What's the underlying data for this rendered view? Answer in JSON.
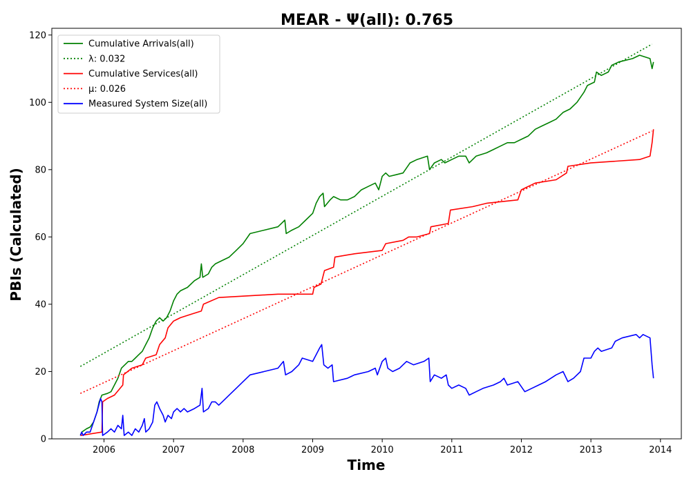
{
  "chart_data": {
    "type": "line",
    "title": "MEAR -  Ψ(all): 0.765",
    "xlabel": "Time",
    "ylabel": "PBIs (Calculated)",
    "xlim": [
      2005.25,
      2014.3
    ],
    "ylim": [
      0,
      122
    ],
    "x_ticks": [
      2006,
      2007,
      2008,
      2009,
      2010,
      2011,
      2012,
      2013,
      2014
    ],
    "y_ticks": [
      0,
      20,
      40,
      60,
      80,
      100,
      120
    ],
    "grid": false,
    "legend_position": "top-left",
    "series": [
      {
        "name": "Cumulative Arrivals(all)",
        "color": "#008000",
        "style": "solid",
        "points": [
          [
            2005.66,
            1
          ],
          [
            2005.68,
            2
          ],
          [
            2005.75,
            3
          ],
          [
            2005.8,
            3.5
          ],
          [
            2005.85,
            5
          ],
          [
            2005.9,
            8
          ],
          [
            2005.93,
            11
          ],
          [
            2005.95,
            12
          ],
          [
            2005.97,
            13
          ],
          [
            2006.05,
            13.5
          ],
          [
            2006.1,
            14
          ],
          [
            2006.15,
            16
          ],
          [
            2006.2,
            18
          ],
          [
            2006.25,
            21
          ],
          [
            2006.3,
            22
          ],
          [
            2006.35,
            23
          ],
          [
            2006.4,
            23
          ],
          [
            2006.45,
            24
          ],
          [
            2006.5,
            25
          ],
          [
            2006.55,
            26
          ],
          [
            2006.6,
            28
          ],
          [
            2006.65,
            30
          ],
          [
            2006.7,
            33
          ],
          [
            2006.75,
            35
          ],
          [
            2006.8,
            36
          ],
          [
            2006.85,
            35
          ],
          [
            2006.9,
            36
          ],
          [
            2006.95,
            38
          ],
          [
            2007,
            41
          ],
          [
            2007.05,
            43
          ],
          [
            2007.1,
            44
          ],
          [
            2007.2,
            45
          ],
          [
            2007.3,
            47
          ],
          [
            2007.38,
            48
          ],
          [
            2007.4,
            52
          ],
          [
            2007.42,
            48
          ],
          [
            2007.5,
            49
          ],
          [
            2007.55,
            51
          ],
          [
            2007.6,
            52
          ],
          [
            2007.7,
            53
          ],
          [
            2007.8,
            54
          ],
          [
            2007.9,
            56
          ],
          [
            2008,
            58
          ],
          [
            2008.1,
            61
          ],
          [
            2008.3,
            62
          ],
          [
            2008.5,
            63
          ],
          [
            2008.55,
            64
          ],
          [
            2008.6,
            65
          ],
          [
            2008.62,
            61
          ],
          [
            2008.7,
            62
          ],
          [
            2008.8,
            63
          ],
          [
            2008.9,
            65
          ],
          [
            2009,
            67
          ],
          [
            2009.05,
            70
          ],
          [
            2009.1,
            72
          ],
          [
            2009.15,
            73
          ],
          [
            2009.17,
            69
          ],
          [
            2009.25,
            71
          ],
          [
            2009.3,
            72
          ],
          [
            2009.4,
            71
          ],
          [
            2009.5,
            71
          ],
          [
            2009.6,
            72
          ],
          [
            2009.7,
            74
          ],
          [
            2009.8,
            75
          ],
          [
            2009.9,
            76
          ],
          [
            2009.95,
            74
          ],
          [
            2010,
            78
          ],
          [
            2010.05,
            79
          ],
          [
            2010.1,
            78
          ],
          [
            2010.2,
            78.5
          ],
          [
            2010.3,
            79
          ],
          [
            2010.4,
            82
          ],
          [
            2010.5,
            83
          ],
          [
            2010.65,
            84
          ],
          [
            2010.68,
            80
          ],
          [
            2010.75,
            82
          ],
          [
            2010.85,
            83
          ],
          [
            2010.9,
            82
          ],
          [
            2011,
            83
          ],
          [
            2011.1,
            84
          ],
          [
            2011.2,
            84
          ],
          [
            2011.25,
            82
          ],
          [
            2011.35,
            84
          ],
          [
            2011.5,
            85
          ],
          [
            2011.6,
            86
          ],
          [
            2011.7,
            87
          ],
          [
            2011.8,
            88
          ],
          [
            2011.9,
            88
          ],
          [
            2012,
            89
          ],
          [
            2012.1,
            90
          ],
          [
            2012.2,
            92
          ],
          [
            2012.3,
            93
          ],
          [
            2012.4,
            94
          ],
          [
            2012.5,
            95
          ],
          [
            2012.55,
            96
          ],
          [
            2012.6,
            97
          ],
          [
            2012.7,
            98
          ],
          [
            2012.8,
            100
          ],
          [
            2012.9,
            103
          ],
          [
            2012.95,
            105
          ],
          [
            2013.05,
            106
          ],
          [
            2013.08,
            109
          ],
          [
            2013.15,
            108
          ],
          [
            2013.25,
            109
          ],
          [
            2013.3,
            111
          ],
          [
            2013.4,
            112
          ],
          [
            2013.6,
            113
          ],
          [
            2013.7,
            114
          ],
          [
            2013.85,
            113
          ],
          [
            2013.88,
            110
          ],
          [
            2013.9,
            112
          ]
        ]
      },
      {
        "name": "λ: 0.032",
        "color": "#008000",
        "style": "dotted",
        "points": [
          [
            2005.66,
            21.5
          ],
          [
            2013.88,
            117.3
          ]
        ]
      },
      {
        "name": "Cumulative Services(all)",
        "color": "#ff0000",
        "style": "solid",
        "points": [
          [
            2005.66,
            1
          ],
          [
            2005.97,
            2
          ],
          [
            2005.98,
            11
          ],
          [
            2006.05,
            12
          ],
          [
            2006.15,
            13
          ],
          [
            2006.27,
            16
          ],
          [
            2006.28,
            19
          ],
          [
            2006.4,
            21
          ],
          [
            2006.55,
            22
          ],
          [
            2006.6,
            24
          ],
          [
            2006.75,
            25
          ],
          [
            2006.8,
            28
          ],
          [
            2006.88,
            30
          ],
          [
            2006.92,
            33
          ],
          [
            2007.0,
            35
          ],
          [
            2007.1,
            36
          ],
          [
            2007.25,
            37
          ],
          [
            2007.4,
            38
          ],
          [
            2007.43,
            40
          ],
          [
            2007.65,
            42
          ],
          [
            2008.5,
            43
          ],
          [
            2009.0,
            43
          ],
          [
            2009.02,
            45
          ],
          [
            2009.12,
            46
          ],
          [
            2009.17,
            50
          ],
          [
            2009.3,
            51
          ],
          [
            2009.32,
            54
          ],
          [
            2009.6,
            55
          ],
          [
            2010.0,
            56
          ],
          [
            2010.05,
            58
          ],
          [
            2010.3,
            59
          ],
          [
            2010.38,
            60
          ],
          [
            2010.5,
            60
          ],
          [
            2010.68,
            61
          ],
          [
            2010.7,
            63
          ],
          [
            2010.95,
            64
          ],
          [
            2010.98,
            68
          ],
          [
            2011.3,
            69
          ],
          [
            2011.5,
            70
          ],
          [
            2011.95,
            71
          ],
          [
            2012.0,
            74
          ],
          [
            2012.1,
            75
          ],
          [
            2012.2,
            76
          ],
          [
            2012.5,
            77
          ],
          [
            2012.65,
            79
          ],
          [
            2012.67,
            81
          ],
          [
            2013.0,
            82
          ],
          [
            2013.7,
            83
          ],
          [
            2013.85,
            84
          ],
          [
            2013.88,
            88
          ],
          [
            2013.9,
            92
          ]
        ]
      },
      {
        "name": "μ: 0.026",
        "color": "#ff0000",
        "style": "dotted",
        "points": [
          [
            2005.66,
            13.5
          ],
          [
            2013.88,
            91.5
          ]
        ]
      },
      {
        "name": "Measured System Size(all)",
        "color": "#0000ff",
        "style": "solid",
        "points": [
          [
            2005.66,
            1
          ],
          [
            2005.68,
            2
          ],
          [
            2005.7,
            1
          ],
          [
            2005.75,
            2
          ],
          [
            2005.8,
            2
          ],
          [
            2005.85,
            5
          ],
          [
            2005.9,
            8
          ],
          [
            2005.95,
            12
          ],
          [
            2005.97,
            11
          ],
          [
            2005.98,
            1
          ],
          [
            2006.05,
            2
          ],
          [
            2006.1,
            3
          ],
          [
            2006.15,
            2
          ],
          [
            2006.2,
            4
          ],
          [
            2006.25,
            3
          ],
          [
            2006.27,
            7
          ],
          [
            2006.29,
            1
          ],
          [
            2006.35,
            2
          ],
          [
            2006.4,
            1
          ],
          [
            2006.45,
            3
          ],
          [
            2006.5,
            2
          ],
          [
            2006.55,
            4
          ],
          [
            2006.58,
            6
          ],
          [
            2006.6,
            2
          ],
          [
            2006.65,
            3
          ],
          [
            2006.7,
            5
          ],
          [
            2006.73,
            10
          ],
          [
            2006.76,
            11
          ],
          [
            2006.8,
            9
          ],
          [
            2006.85,
            7
          ],
          [
            2006.88,
            5
          ],
          [
            2006.92,
            7
          ],
          [
            2006.97,
            6
          ],
          [
            2007.0,
            8
          ],
          [
            2007.05,
            9
          ],
          [
            2007.1,
            8
          ],
          [
            2007.15,
            9
          ],
          [
            2007.2,
            8
          ],
          [
            2007.3,
            9
          ],
          [
            2007.38,
            10
          ],
          [
            2007.41,
            15
          ],
          [
            2007.43,
            8
          ],
          [
            2007.5,
            9
          ],
          [
            2007.55,
            11
          ],
          [
            2007.6,
            11
          ],
          [
            2007.65,
            10
          ],
          [
            2007.7,
            11
          ],
          [
            2007.8,
            13
          ],
          [
            2007.9,
            15
          ],
          [
            2008.0,
            17
          ],
          [
            2008.1,
            19
          ],
          [
            2008.3,
            20
          ],
          [
            2008.5,
            21
          ],
          [
            2008.58,
            23
          ],
          [
            2008.61,
            19
          ],
          [
            2008.7,
            20
          ],
          [
            2008.8,
            22
          ],
          [
            2008.85,
            24
          ],
          [
            2009.0,
            23
          ],
          [
            2009.05,
            25
          ],
          [
            2009.1,
            27
          ],
          [
            2009.13,
            28
          ],
          [
            2009.16,
            22
          ],
          [
            2009.22,
            21
          ],
          [
            2009.28,
            22
          ],
          [
            2009.3,
            17
          ],
          [
            2009.5,
            18
          ],
          [
            2009.6,
            19
          ],
          [
            2009.8,
            20
          ],
          [
            2009.9,
            21
          ],
          [
            2009.93,
            19
          ],
          [
            2010.0,
            23
          ],
          [
            2010.05,
            24
          ],
          [
            2010.08,
            21
          ],
          [
            2010.15,
            20
          ],
          [
            2010.25,
            21
          ],
          [
            2010.3,
            22
          ],
          [
            2010.35,
            23
          ],
          [
            2010.45,
            22
          ],
          [
            2010.6,
            23
          ],
          [
            2010.67,
            24
          ],
          [
            2010.69,
            17
          ],
          [
            2010.75,
            19
          ],
          [
            2010.85,
            18
          ],
          [
            2010.92,
            19
          ],
          [
            2010.95,
            16
          ],
          [
            2011.0,
            15
          ],
          [
            2011.1,
            16
          ],
          [
            2011.2,
            15
          ],
          [
            2011.25,
            13
          ],
          [
            2011.35,
            14
          ],
          [
            2011.45,
            15
          ],
          [
            2011.6,
            16
          ],
          [
            2011.7,
            17
          ],
          [
            2011.75,
            18
          ],
          [
            2011.8,
            16
          ],
          [
            2011.95,
            17
          ],
          [
            2012.05,
            14
          ],
          [
            2012.15,
            15
          ],
          [
            2012.25,
            16
          ],
          [
            2012.35,
            17
          ],
          [
            2012.5,
            19
          ],
          [
            2012.6,
            20
          ],
          [
            2012.67,
            17
          ],
          [
            2012.75,
            18
          ],
          [
            2012.85,
            20
          ],
          [
            2012.9,
            24
          ],
          [
            2013.0,
            24
          ],
          [
            2013.05,
            26
          ],
          [
            2013.1,
            27
          ],
          [
            2013.15,
            26
          ],
          [
            2013.3,
            27
          ],
          [
            2013.35,
            29
          ],
          [
            2013.45,
            30
          ],
          [
            2013.65,
            31
          ],
          [
            2013.7,
            30
          ],
          [
            2013.75,
            31
          ],
          [
            2013.85,
            30
          ],
          [
            2013.88,
            22
          ],
          [
            2013.9,
            18
          ]
        ]
      }
    ]
  }
}
